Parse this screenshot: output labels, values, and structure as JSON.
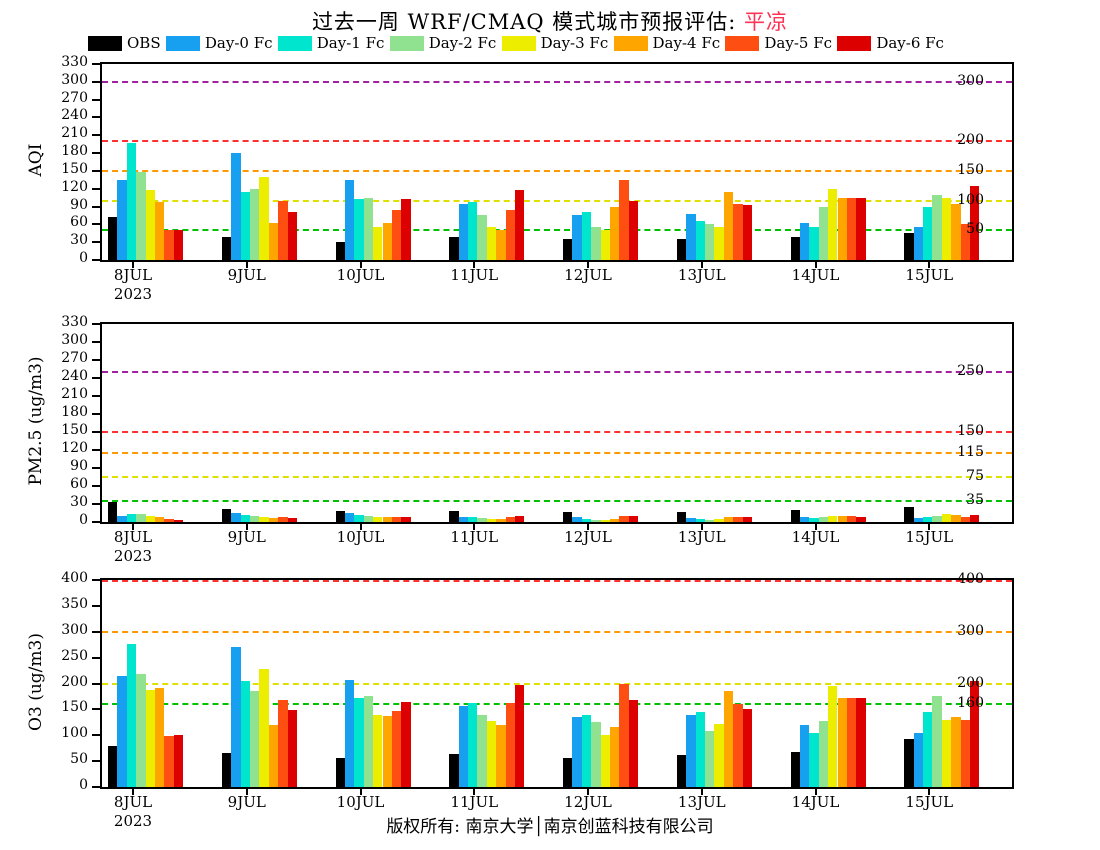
{
  "title": {
    "prefix": "过去一周 WRF/CMAQ 模式城市预报评估:",
    "city": "平凉"
  },
  "footer": "版权所有: 南京大学│南京创蓝科技有限公司",
  "legend": [
    {
      "label": "OBS",
      "color": "#000000"
    },
    {
      "label": "Day-0 Fc",
      "color": "#18A0F0"
    },
    {
      "label": "Day-1 Fc",
      "color": "#00E5CE"
    },
    {
      "label": "Day-2 Fc",
      "color": "#90E290"
    },
    {
      "label": "Day-3 Fc",
      "color": "#EDED00"
    },
    {
      "label": "Day-4 Fc",
      "color": "#FFA500"
    },
    {
      "label": "Day-5 Fc",
      "color": "#FF4E11"
    },
    {
      "label": "Day-6 Fc",
      "color": "#DD0000"
    }
  ],
  "chart_data": [
    {
      "type": "bar",
      "id": "aqi",
      "ylabel": "AQI",
      "ylim": [
        0,
        330
      ],
      "ytick_step": 30,
      "grid": false,
      "categories": [
        "8JUL",
        "9JUL",
        "10JUL",
        "11JUL",
        "12JUL",
        "13JUL",
        "14JUL",
        "15JUL"
      ],
      "first_category_year": "2023",
      "ref_lines": [
        {
          "value": 50,
          "color": "#00C000",
          "label": "50"
        },
        {
          "value": 100,
          "color": "#E0E000",
          "label": "100"
        },
        {
          "value": 150,
          "color": "#FF9900",
          "label": "150"
        },
        {
          "value": 200,
          "color": "#FF3030",
          "label": "200"
        },
        {
          "value": 300,
          "color": "#A020A0",
          "label": "300"
        }
      ],
      "series": [
        {
          "name": "OBS",
          "color": "#000000",
          "values": [
            72,
            38,
            30,
            38,
            35,
            35,
            38,
            45
          ]
        },
        {
          "name": "Day-0 Fc",
          "color": "#18A0F0",
          "values": [
            135,
            180,
            135,
            95,
            75,
            78,
            62,
            55
          ]
        },
        {
          "name": "Day-1 Fc",
          "color": "#00E5CE",
          "values": [
            197,
            115,
            103,
            97,
            80,
            65,
            55,
            90
          ]
        },
        {
          "name": "Day-2 Fc",
          "color": "#90E290",
          "values": [
            148,
            120,
            105,
            75,
            55,
            60,
            90,
            110
          ]
        },
        {
          "name": "Day-3 Fc",
          "color": "#EDED00",
          "values": [
            118,
            140,
            55,
            55,
            50,
            55,
            120,
            105
          ]
        },
        {
          "name": "Day-4 Fc",
          "color": "#FFA500",
          "values": [
            97,
            62,
            62,
            50,
            90,
            115,
            105,
            95
          ]
        },
        {
          "name": "Day-5 Fc",
          "color": "#FF4E11",
          "values": [
            50,
            100,
            85,
            85,
            135,
            95,
            105,
            60
          ]
        },
        {
          "name": "Day-6 Fc",
          "color": "#DD0000",
          "values": [
            50,
            80,
            103,
            118,
            100,
            92,
            105,
            125
          ]
        }
      ]
    },
    {
      "type": "bar",
      "id": "pm25",
      "ylabel": "PM2.5 (ug/m3)",
      "ylim": [
        0,
        330
      ],
      "ytick_step": 30,
      "grid": false,
      "categories": [
        "8JUL",
        "9JUL",
        "10JUL",
        "11JUL",
        "12JUL",
        "13JUL",
        "14JUL",
        "15JUL"
      ],
      "first_category_year": "2023",
      "ref_lines": [
        {
          "value": 35,
          "color": "#00C000",
          "label": "35"
        },
        {
          "value": 75,
          "color": "#E0E000",
          "label": "75"
        },
        {
          "value": 115,
          "color": "#FF9900",
          "label": "115"
        },
        {
          "value": 150,
          "color": "#FF3030",
          "label": "150"
        },
        {
          "value": 250,
          "color": "#A020A0",
          "label": "250"
        }
      ],
      "series": [
        {
          "name": "OBS",
          "color": "#000000",
          "values": [
            33,
            22,
            18,
            18,
            17,
            17,
            20,
            25
          ]
        },
        {
          "name": "Day-0 Fc",
          "color": "#18A0F0",
          "values": [
            10,
            15,
            15,
            8,
            8,
            6,
            8,
            6
          ]
        },
        {
          "name": "Day-1 Fc",
          "color": "#00E5CE",
          "values": [
            13,
            12,
            12,
            8,
            5,
            5,
            6,
            8
          ]
        },
        {
          "name": "Day-2 Fc",
          "color": "#90E290",
          "values": [
            13,
            10,
            10,
            6,
            4,
            4,
            8,
            10
          ]
        },
        {
          "name": "Day-3 Fc",
          "color": "#EDED00",
          "values": [
            10,
            8,
            8,
            5,
            4,
            5,
            10,
            13
          ]
        },
        {
          "name": "Day-4 Fc",
          "color": "#FFA500",
          "values": [
            8,
            7,
            8,
            5,
            5,
            8,
            10,
            12
          ]
        },
        {
          "name": "Day-5 Fc",
          "color": "#FF4E11",
          "values": [
            5,
            8,
            8,
            8,
            10,
            8,
            10,
            8
          ]
        },
        {
          "name": "Day-6 Fc",
          "color": "#DD0000",
          "values": [
            4,
            7,
            8,
            10,
            10,
            8,
            9,
            12
          ]
        }
      ]
    },
    {
      "type": "bar",
      "id": "o3",
      "ylabel": "O3 (ug/m3)",
      "ylim": [
        0,
        400
      ],
      "ytick_step": 50,
      "grid": false,
      "categories": [
        "8JUL",
        "9JUL",
        "10JUL",
        "11JUL",
        "12JUL",
        "13JUL",
        "14JUL",
        "15JUL"
      ],
      "first_category_year": "2023",
      "ref_lines": [
        {
          "value": 160,
          "color": "#00C000",
          "label": "160"
        },
        {
          "value": 200,
          "color": "#E0E000",
          "label": "200"
        },
        {
          "value": 300,
          "color": "#FF9900",
          "label": "300"
        },
        {
          "value": 400,
          "color": "#FF3030",
          "label": "400"
        }
      ],
      "series": [
        {
          "name": "OBS",
          "color": "#000000",
          "values": [
            80,
            65,
            57,
            63,
            57,
            62,
            68,
            92
          ]
        },
        {
          "name": "Day-0 Fc",
          "color": "#18A0F0",
          "values": [
            215,
            270,
            207,
            157,
            135,
            140,
            120,
            105
          ]
        },
        {
          "name": "Day-1 Fc",
          "color": "#00E5CE",
          "values": [
            277,
            205,
            172,
            162,
            140,
            145,
            105,
            145
          ]
        },
        {
          "name": "Day-2 Fc",
          "color": "#90E290",
          "values": [
            218,
            185,
            175,
            140,
            125,
            108,
            128,
            175
          ]
        },
        {
          "name": "Day-3 Fc",
          "color": "#EDED00",
          "values": [
            187,
            228,
            140,
            127,
            100,
            122,
            195,
            130
          ]
        },
        {
          "name": "Day-4 Fc",
          "color": "#FFA500",
          "values": [
            192,
            120,
            138,
            120,
            115,
            185,
            172,
            135
          ]
        },
        {
          "name": "Day-5 Fc",
          "color": "#FF4E11",
          "values": [
            98,
            168,
            147,
            163,
            200,
            160,
            172,
            130
          ]
        },
        {
          "name": "Day-6 Fc",
          "color": "#DD0000",
          "values": [
            100,
            148,
            165,
            197,
            168,
            150,
            172,
            205
          ]
        }
      ]
    }
  ]
}
